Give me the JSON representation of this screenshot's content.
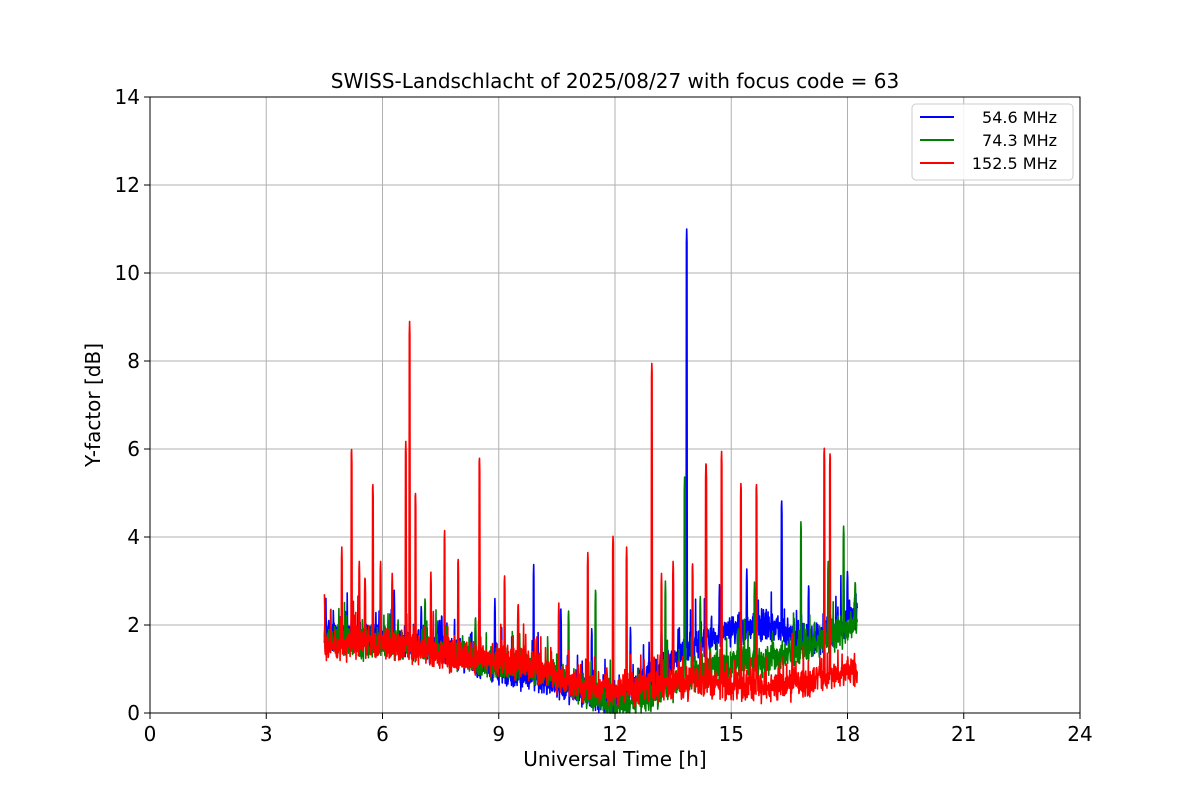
{
  "chart_data": {
    "type": "line",
    "title": "SWISS-Landschlacht of 2025/08/27 with focus code = 63",
    "xlabel": "Universal Time [h]",
    "ylabel": "Y-factor [dB]",
    "xlim": [
      0,
      24
    ],
    "ylim": [
      0,
      14
    ],
    "xticks": [
      0,
      3,
      6,
      9,
      12,
      15,
      18,
      21,
      24
    ],
    "yticks": [
      0,
      2,
      4,
      6,
      8,
      10,
      12,
      14
    ],
    "grid": true,
    "legend_position": "top-right",
    "x_range_of_data": [
      4.5,
      18.25
    ],
    "series": [
      {
        "name": "54.6 MHz",
        "color": "#0000ff",
        "baseline": [
          [
            4.5,
            1.8
          ],
          [
            6,
            1.7
          ],
          [
            7.5,
            1.5
          ],
          [
            9,
            1.0
          ],
          [
            10,
            0.8
          ],
          [
            11,
            0.5
          ],
          [
            12,
            0.2
          ],
          [
            13,
            0.9
          ],
          [
            14,
            1.5
          ],
          [
            15,
            1.9
          ],
          [
            16,
            2.0
          ],
          [
            17,
            1.6
          ],
          [
            18.2,
            2.2
          ]
        ],
        "spikes": [
          [
            4.6,
            2.0
          ],
          [
            6.3,
            2.9
          ],
          [
            7.0,
            2.5
          ],
          [
            8.5,
            3.1
          ],
          [
            8.9,
            2.6
          ],
          [
            9.9,
            3.4
          ],
          [
            10.6,
            2.5
          ],
          [
            11.4,
            2.0
          ],
          [
            12.4,
            2.0
          ],
          [
            13.5,
            3.2
          ],
          [
            13.85,
            11.0
          ],
          [
            14.7,
            3.0
          ],
          [
            15.4,
            3.3
          ],
          [
            16.3,
            4.9
          ],
          [
            17.0,
            3.0
          ],
          [
            18.0,
            3.3
          ]
        ]
      },
      {
        "name": "74.3 MHz",
        "color": "#008000",
        "baseline": [
          [
            4.5,
            1.6
          ],
          [
            6,
            1.6
          ],
          [
            7.5,
            1.4
          ],
          [
            9,
            1.1
          ],
          [
            10,
            1.0
          ],
          [
            11,
            0.6
          ],
          [
            12,
            0.15
          ],
          [
            13,
            0.4
          ],
          [
            14,
            0.8
          ],
          [
            15,
            1.1
          ],
          [
            16,
            1.2
          ],
          [
            17,
            1.5
          ],
          [
            18.2,
            2.0
          ]
        ],
        "spikes": [
          [
            4.7,
            1.9
          ],
          [
            6.4,
            2.2
          ],
          [
            7.1,
            2.7
          ],
          [
            8.4,
            2.3
          ],
          [
            10.8,
            2.4
          ],
          [
            11.5,
            2.9
          ],
          [
            13.3,
            3.0
          ],
          [
            13.8,
            5.5
          ],
          [
            14.2,
            2.7
          ],
          [
            15.6,
            3.0
          ],
          [
            16.8,
            4.4
          ],
          [
            17.5,
            3.5
          ],
          [
            17.9,
            4.3
          ],
          [
            18.2,
            3.1
          ]
        ]
      },
      {
        "name": "152.5 MHz",
        "color": "#ff0000",
        "baseline": [
          [
            4.5,
            1.5
          ],
          [
            6,
            1.6
          ],
          [
            7.5,
            1.3
          ],
          [
            9,
            1.2
          ],
          [
            10,
            1.0
          ],
          [
            11,
            0.6
          ],
          [
            12,
            0.5
          ],
          [
            13,
            0.6
          ],
          [
            14,
            0.7
          ],
          [
            15,
            0.6
          ],
          [
            16,
            0.6
          ],
          [
            17,
            0.7
          ],
          [
            18.2,
            1.0
          ]
        ],
        "spikes": [
          [
            4.5,
            2.7
          ],
          [
            4.95,
            3.8
          ],
          [
            5.2,
            6.1
          ],
          [
            5.4,
            3.5
          ],
          [
            5.55,
            3.2
          ],
          [
            5.75,
            5.3
          ],
          [
            5.95,
            3.5
          ],
          [
            6.25,
            3.2
          ],
          [
            6.6,
            6.2
          ],
          [
            6.7,
            8.9
          ],
          [
            6.85,
            5.1
          ],
          [
            7.25,
            3.2
          ],
          [
            7.6,
            4.2
          ],
          [
            7.95,
            3.6
          ],
          [
            8.5,
            5.9
          ],
          [
            9.15,
            3.2
          ],
          [
            9.5,
            2.6
          ],
          [
            10.55,
            2.5
          ],
          [
            11.3,
            3.7
          ],
          [
            11.95,
            4.1
          ],
          [
            12.3,
            3.8
          ],
          [
            12.95,
            8.0
          ],
          [
            13.2,
            3.2
          ],
          [
            13.5,
            3.5
          ],
          [
            14.0,
            3.5
          ],
          [
            14.35,
            5.8
          ],
          [
            14.75,
            6.0
          ],
          [
            15.25,
            5.3
          ],
          [
            15.65,
            5.3
          ],
          [
            17.4,
            6.1
          ],
          [
            17.55,
            6.0
          ]
        ]
      }
    ]
  }
}
